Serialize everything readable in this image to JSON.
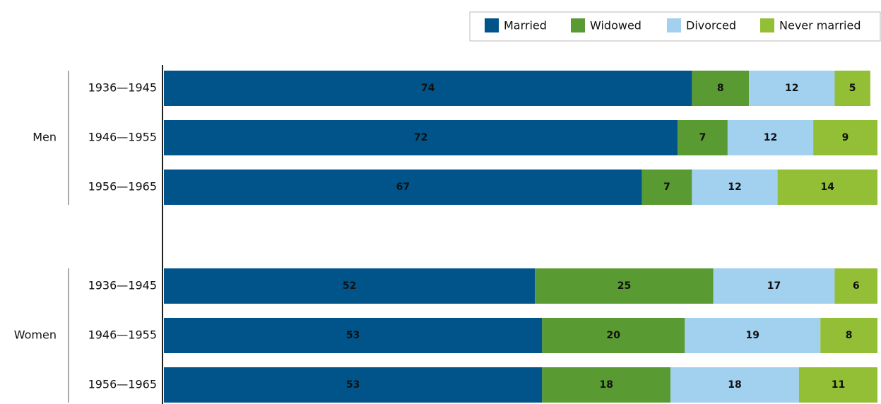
{
  "chart_data": {
    "type": "stacked-bar",
    "groups": [
      "Men",
      "Women"
    ],
    "categories": [
      [
        "1936—1945",
        "1946—1955",
        "1956—1965"
      ],
      [
        "1936—1945",
        "1946—1955",
        "1956—1965"
      ]
    ],
    "series": [
      {
        "name": "Married",
        "color": "#00548a",
        "values": [
          [
            74,
            72,
            67
          ],
          [
            52,
            53,
            53
          ]
        ]
      },
      {
        "name": "Widowed",
        "color": "#5a9a33",
        "values": [
          [
            8,
            7,
            7
          ],
          [
            25,
            20,
            18
          ]
        ]
      },
      {
        "name": "Divorced",
        "color": "#a2d0ef",
        "values": [
          [
            12,
            12,
            12
          ],
          [
            17,
            19,
            18
          ]
        ]
      },
      {
        "name": "Never married",
        "color": "#93bf37",
        "values": [
          [
            5,
            9,
            14
          ],
          [
            6,
            8,
            11
          ]
        ]
      }
    ],
    "xlim": [
      0,
      100
    ],
    "legend": "top-right"
  }
}
